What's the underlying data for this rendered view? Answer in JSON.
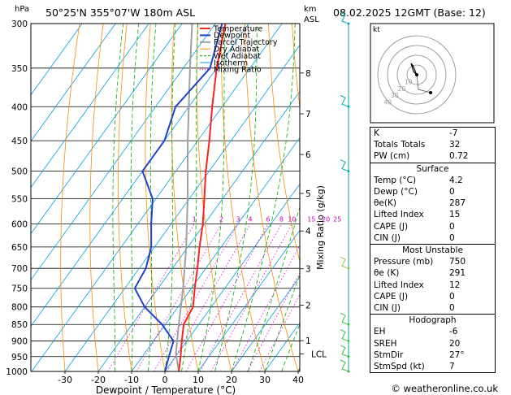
{
  "header": {
    "hpa_label": "hPa",
    "location": "50°25'N  355°07'W  180m  ASL",
    "km_label": "km",
    "asl_label": "ASL",
    "valid": "08.02.2025  12GMT  (Base: 12)"
  },
  "legend": [
    {
      "label": "Temperature",
      "color": "#ff2020"
    },
    {
      "label": "Dewpoint",
      "color": "#2040d0"
    },
    {
      "label": "Parcel Trajectory",
      "color": "#a0a0a0"
    },
    {
      "label": "Dry Adiabat",
      "color": "#ff8c00"
    },
    {
      "label": "Wet Adiabat",
      "color": "#00b000"
    },
    {
      "label": "Isotherm",
      "color": "#00a0e0"
    },
    {
      "label": "Mixing Ratio",
      "color": "#e000e0"
    }
  ],
  "chart_data": {
    "type": "skew-t",
    "xlabel": "Dewpoint / Temperature (°C)",
    "ylabel_right": "Mixing Ratio (g/kg)",
    "pressure_ticks": [
      300,
      350,
      400,
      450,
      500,
      550,
      600,
      650,
      700,
      750,
      800,
      850,
      900,
      950,
      1000
    ],
    "temperature_ticks": [
      -30,
      -20,
      -10,
      0,
      10,
      20,
      30,
      40
    ],
    "km_ticks": [
      {
        "label": "8",
        "p": 356
      },
      {
        "label": "7",
        "p": 410
      },
      {
        "label": "6",
        "p": 472
      },
      {
        "label": "5",
        "p": 540
      },
      {
        "label": "4",
        "p": 615
      },
      {
        "label": "3",
        "p": 701
      },
      {
        "label": "2",
        "p": 795
      },
      {
        "label": "1",
        "p": 899
      },
      {
        "label": "LCL",
        "p": 941
      }
    ],
    "mixing_ratio_labels": [
      "1",
      "2",
      "3",
      "4",
      "6",
      "8",
      "10",
      "15",
      "20",
      "25"
    ],
    "temperature": [
      {
        "p": 1000,
        "t": 4.2
      },
      {
        "p": 950,
        "t": 1.5
      },
      {
        "p": 900,
        "t": -1.5
      },
      {
        "p": 850,
        "t": -4.5
      },
      {
        "p": 800,
        "t": -5.5
      },
      {
        "p": 750,
        "t": -9
      },
      {
        "p": 700,
        "t": -12.5
      },
      {
        "p": 650,
        "t": -16.5
      },
      {
        "p": 600,
        "t": -20.5
      },
      {
        "p": 550,
        "t": -25.5
      },
      {
        "p": 500,
        "t": -31
      },
      {
        "p": 450,
        "t": -36.5
      },
      {
        "p": 400,
        "t": -43
      },
      {
        "p": 350,
        "t": -50
      },
      {
        "p": 300,
        "t": -57
      }
    ],
    "dewpoint": [
      {
        "p": 1000,
        "t": 0
      },
      {
        "p": 950,
        "t": -2
      },
      {
        "p": 900,
        "t": -4
      },
      {
        "p": 850,
        "t": -11
      },
      {
        "p": 800,
        "t": -20
      },
      {
        "p": 750,
        "t": -27
      },
      {
        "p": 700,
        "t": -28
      },
      {
        "p": 650,
        "t": -31
      },
      {
        "p": 600,
        "t": -36
      },
      {
        "p": 550,
        "t": -41
      },
      {
        "p": 500,
        "t": -50
      },
      {
        "p": 450,
        "t": -50
      },
      {
        "p": 400,
        "t": -54
      },
      {
        "p": 350,
        "t": -52
      },
      {
        "p": 300,
        "t": -58
      }
    ],
    "parcel": [
      {
        "p": 1000,
        "t": 4.2
      },
      {
        "p": 941,
        "t": -0.5
      },
      {
        "p": 850,
        "t": -6
      },
      {
        "p": 750,
        "t": -12.5
      },
      {
        "p": 650,
        "t": -20.5
      },
      {
        "p": 550,
        "t": -30.5
      },
      {
        "p": 450,
        "t": -43
      },
      {
        "p": 350,
        "t": -58
      },
      {
        "p": 300,
        "t": -67
      }
    ]
  },
  "hodograph": {
    "unit_label": "kt",
    "ring_labels": [
      "10",
      "20",
      "30",
      "40"
    ]
  },
  "indices": {
    "top": [
      {
        "label": "K",
        "value": "-7"
      },
      {
        "label": "Totals Totals",
        "value": "32"
      },
      {
        "label": "PW (cm)",
        "value": "0.72"
      }
    ],
    "surface": {
      "title": "Surface",
      "rows": [
        {
          "label": "Temp (°C)",
          "value": "4.2"
        },
        {
          "label": "Dewp (°C)",
          "value": "0"
        },
        {
          "label": "θe(K)",
          "value": "287"
        },
        {
          "label": "Lifted Index",
          "value": "15"
        },
        {
          "label": "CAPE (J)",
          "value": "0"
        },
        {
          "label": "CIN (J)",
          "value": "0"
        }
      ]
    },
    "most_unstable": {
      "title": "Most Unstable",
      "rows": [
        {
          "label": "Pressure (mb)",
          "value": "750"
        },
        {
          "label": "θe (K)",
          "value": "291"
        },
        {
          "label": "Lifted Index",
          "value": "12"
        },
        {
          "label": "CAPE (J)",
          "value": "0"
        },
        {
          "label": "CIN (J)",
          "value": "0"
        }
      ]
    },
    "hodograph_box": {
      "title": "Hodograph",
      "rows": [
        {
          "label": "EH",
          "value": "-6"
        },
        {
          "label": "SREH",
          "value": "20"
        },
        {
          "label": "StmDir",
          "value": "27°"
        },
        {
          "label": "StmSpd (kt)",
          "value": "7"
        }
      ]
    }
  },
  "credit": "© weatheronline.co.uk"
}
